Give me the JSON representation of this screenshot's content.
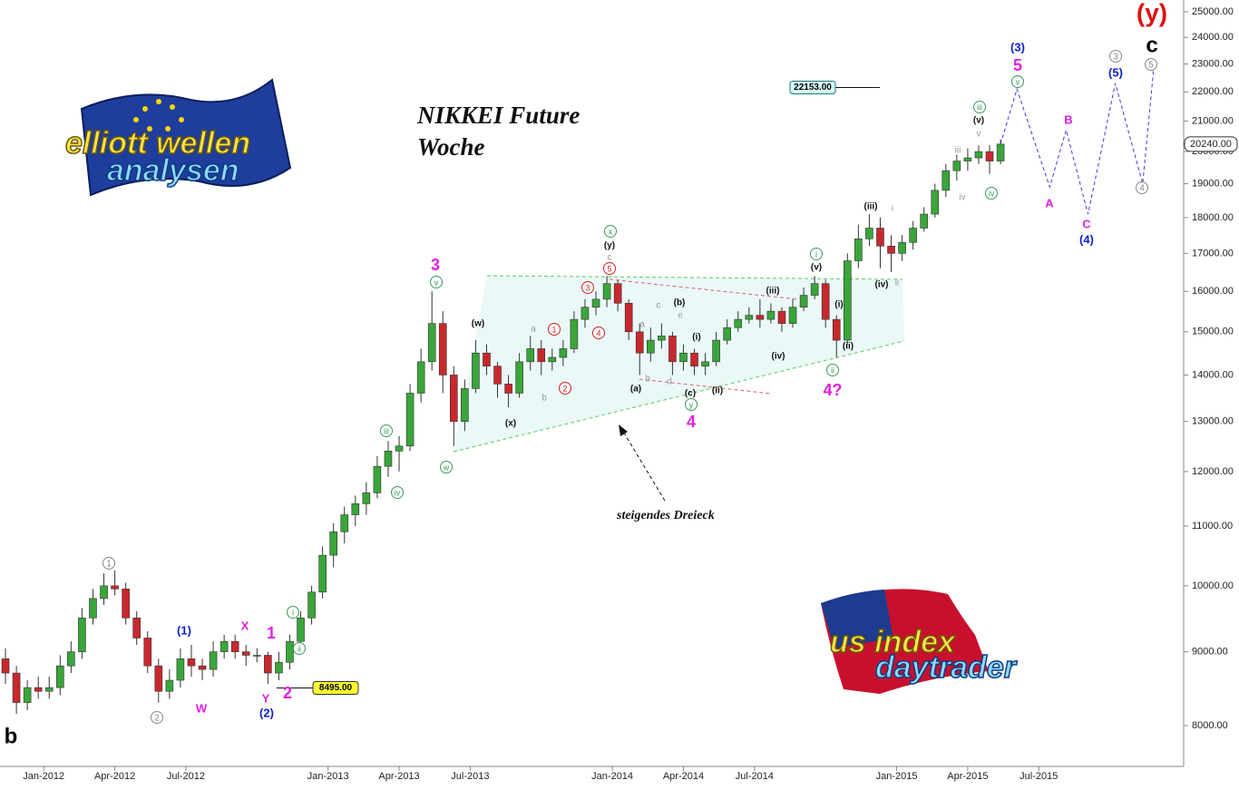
{
  "chart_data": {
    "type": "candlestick",
    "title": "NIKKEI Future",
    "subtitle": "Woche",
    "up_color": "#3aa53a",
    "down_color": "#c8282d",
    "log_scale": true,
    "xlim": [
      -8,
      208
    ],
    "xticks": [
      {
        "value": 0,
        "label": "Jan-2012"
      },
      {
        "value": 13,
        "label": "Apr-2012"
      },
      {
        "value": 26,
        "label": "Jul-2012"
      },
      {
        "value": 52,
        "label": "Jan-2013"
      },
      {
        "value": 65,
        "label": "Apr-2013"
      },
      {
        "value": 78,
        "label": "Jul-2013"
      },
      {
        "value": 104,
        "label": "Jan-2014"
      },
      {
        "value": 117,
        "label": "Apr-2014"
      },
      {
        "value": 130,
        "label": "Jul-2014"
      },
      {
        "value": 156,
        "label": "Jan-2015"
      },
      {
        "value": 169,
        "label": "Apr-2015"
      },
      {
        "value": 182,
        "label": "Jul-2015"
      }
    ],
    "ylim": [
      7495,
      25475
    ],
    "yticks": [
      {
        "value": 8000,
        "label": "8000.00"
      },
      {
        "value": 9000,
        "label": "9000.00"
      },
      {
        "value": 10000,
        "label": "10000.00"
      },
      {
        "value": 11000,
        "label": "11000.00"
      },
      {
        "value": 12000,
        "label": "12000.00"
      },
      {
        "value": 13000,
        "label": "13000.00"
      },
      {
        "value": 14000,
        "label": "14000.00"
      },
      {
        "value": 15000,
        "label": "15000.00"
      },
      {
        "value": 16000,
        "label": "16000.00"
      },
      {
        "value": 17000,
        "label": "17000.00"
      },
      {
        "value": 18000,
        "label": "18000.00"
      },
      {
        "value": 19000,
        "label": "19000.00"
      },
      {
        "value": 20000,
        "label": "20000.00"
      },
      {
        "value": 21000,
        "label": "21000.00"
      },
      {
        "value": 22000,
        "label": "22000.00"
      },
      {
        "value": 23000,
        "label": "23000.00"
      },
      {
        "value": 24000,
        "label": "24000.00"
      },
      {
        "value": 25000,
        "label": "25000.00"
      }
    ],
    "x": [
      -7,
      -5,
      -3,
      -1,
      1,
      3,
      5,
      7,
      9,
      11,
      13,
      15,
      17,
      19,
      21,
      23,
      25,
      27,
      29,
      31,
      33,
      35,
      37,
      39,
      41,
      43,
      45,
      47,
      49,
      51,
      53,
      55,
      57,
      59,
      61,
      63,
      65,
      67,
      69,
      71,
      73,
      75,
      77,
      79,
      81,
      83,
      85,
      87,
      89,
      91,
      93,
      95,
      97,
      99,
      101,
      103,
      105,
      107,
      109,
      111,
      113,
      115,
      117,
      119,
      121,
      123,
      125,
      127,
      129,
      131,
      133,
      135,
      137,
      139,
      141,
      143,
      145,
      147,
      149,
      151,
      153,
      155,
      157,
      159,
      161,
      163,
      165,
      167,
      169,
      171,
      173,
      175
    ],
    "open": [
      8900,
      8700,
      8300,
      8500,
      8450,
      8500,
      8800,
      9000,
      9500,
      9800,
      10000,
      9950,
      9500,
      9200,
      8800,
      8450,
      8600,
      8900,
      8800,
      8750,
      9000,
      9150,
      9000,
      8950,
      8950,
      8700,
      8850,
      9150,
      9500,
      9900,
      10500,
      10900,
      11200,
      11400,
      11600,
      12100,
      12400,
      12500,
      13600,
      14300,
      15200,
      14000,
      13000,
      13700,
      14500,
      14200,
      13800,
      13600,
      14300,
      14600,
      14300,
      14400,
      14600,
      15300,
      15600,
      15800,
      16200,
      15700,
      15000,
      14500,
      14800,
      14900,
      14300,
      14500,
      14200,
      14300,
      14800,
      15100,
      15300,
      15400,
      15300,
      15500,
      15200,
      15600,
      15900,
      16200,
      15300,
      14800,
      16800,
      17400,
      17700,
      17200,
      17000,
      17300,
      17700,
      18100,
      18800,
      19400,
      19700,
      19800,
      20000,
      19700
    ],
    "high": [
      9050,
      8800,
      8600,
      8650,
      8650,
      8950,
      9150,
      9650,
      9950,
      10200,
      10250,
      10050,
      9600,
      9300,
      8900,
      8750,
      9050,
      9100,
      8900,
      9150,
      9250,
      9250,
      9100,
      9050,
      9000,
      9000,
      9250,
      9600,
      10000,
      10650,
      11050,
      11350,
      11550,
      11800,
      12300,
      12600,
      12700,
      13800,
      14600,
      16000,
      15500,
      14200,
      13900,
      14800,
      14700,
      14300,
      14000,
      14500,
      14900,
      14800,
      14600,
      14800,
      15500,
      15800,
      16000,
      16400,
      16300,
      15800,
      15200,
      15100,
      15200,
      15000,
      14700,
      14600,
      14500,
      15000,
      15300,
      15500,
      15600,
      15800,
      15700,
      15600,
      15800,
      16100,
      16400,
      16300,
      15400,
      17000,
      17800,
      18100,
      18000,
      17500,
      17500,
      17900,
      18300,
      19000,
      19600,
      19900,
      20100,
      20200,
      20200,
      20400
    ],
    "low": [
      8550,
      8150,
      8200,
      8350,
      8350,
      8400,
      8700,
      8900,
      9400,
      9700,
      9850,
      9400,
      9100,
      8700,
      8300,
      8350,
      8500,
      8650,
      8600,
      8650,
      8900,
      8900,
      8800,
      8850,
      8550,
      8600,
      8750,
      9050,
      9400,
      9800,
      10300,
      10700,
      11000,
      11200,
      11500,
      11900,
      12000,
      12400,
      13400,
      14100,
      13600,
      12500,
      12800,
      13600,
      14000,
      13500,
      13300,
      13500,
      14100,
      14000,
      14100,
      14200,
      14500,
      15100,
      15400,
      15600,
      15500,
      14800,
      14000,
      14300,
      14600,
      14000,
      14100,
      14000,
      14000,
      14200,
      14700,
      15000,
      15200,
      15100,
      15200,
      15000,
      15100,
      15500,
      15800,
      15100,
      14400,
      14700,
      16600,
      17200,
      16600,
      16500,
      16800,
      17100,
      17600,
      18000,
      18600,
      19100,
      19400,
      19600,
      19300,
      19600
    ],
    "close": [
      8700,
      8300,
      8500,
      8450,
      8500,
      8800,
      9000,
      9500,
      9800,
      10000,
      9950,
      9500,
      9200,
      8800,
      8450,
      8600,
      8900,
      8800,
      8750,
      9000,
      9150,
      9000,
      8950,
      8950,
      8700,
      8850,
      9150,
      9500,
      9900,
      10500,
      10900,
      11200,
      11400,
      11600,
      12100,
      12400,
      12500,
      13600,
      14300,
      15200,
      14000,
      13000,
      13700,
      14500,
      14200,
      13800,
      13600,
      14300,
      14600,
      14300,
      14400,
      14600,
      15300,
      15600,
      15800,
      16200,
      15700,
      15000,
      14500,
      14800,
      14900,
      14300,
      14500,
      14200,
      14300,
      14800,
      15100,
      15300,
      15400,
      15300,
      15500,
      15200,
      15600,
      15900,
      16200,
      15300,
      14800,
      16800,
      17400,
      17700,
      17200,
      17000,
      17300,
      17700,
      18100,
      18800,
      19400,
      19700,
      19800,
      20000,
      19700,
      20240
    ],
    "projection": {
      "color": "#3a3adf",
      "x": [
        175,
        178,
        184,
        187,
        191,
        196,
        201,
        203
      ],
      "values": [
        20240,
        22100,
        18900,
        20700,
        18100,
        22300,
        19000,
        22800
      ]
    },
    "last_price": {
      "value": 20240,
      "label": "20240.00"
    },
    "price_markers": [
      {
        "value": 22153,
        "label": "22153.00"
      },
      {
        "value": 8495,
        "label": "8495.00"
      }
    ],
    "annotations": [
      "b",
      "1",
      "2",
      "(1)",
      "W",
      "X",
      "1",
      "Y",
      "2",
      "(2)",
      "i",
      "ii",
      "iii",
      "iv",
      "3",
      "v",
      "w",
      "(w)",
      "(x)",
      "a",
      "b",
      "1",
      "2",
      "3",
      "4",
      "5",
      "x",
      "(y)",
      "c",
      "a",
      "b",
      "(a)",
      "c",
      "d",
      "e",
      "(b)",
      "(c)",
      "y",
      "4",
      "(i)",
      "(ii)",
      "(iii)",
      "(iv)",
      "i",
      "(v)",
      "(i)",
      "(ii)",
      "ii",
      "4?",
      "(iii)",
      "i",
      "(iv)",
      "ii",
      "iii",
      "iv",
      "iii",
      "(v)",
      "v",
      "iv",
      "(3)",
      "5",
      "v",
      "A",
      "B",
      "C",
      "(4)",
      "3",
      "(5)",
      "4",
      "5",
      "c",
      "(y)"
    ],
    "pattern_label": "steigendes Dreieck"
  },
  "logos": {
    "left": [
      "elliott wellen",
      "analysen"
    ],
    "right": [
      "us index",
      "daytrader"
    ]
  }
}
